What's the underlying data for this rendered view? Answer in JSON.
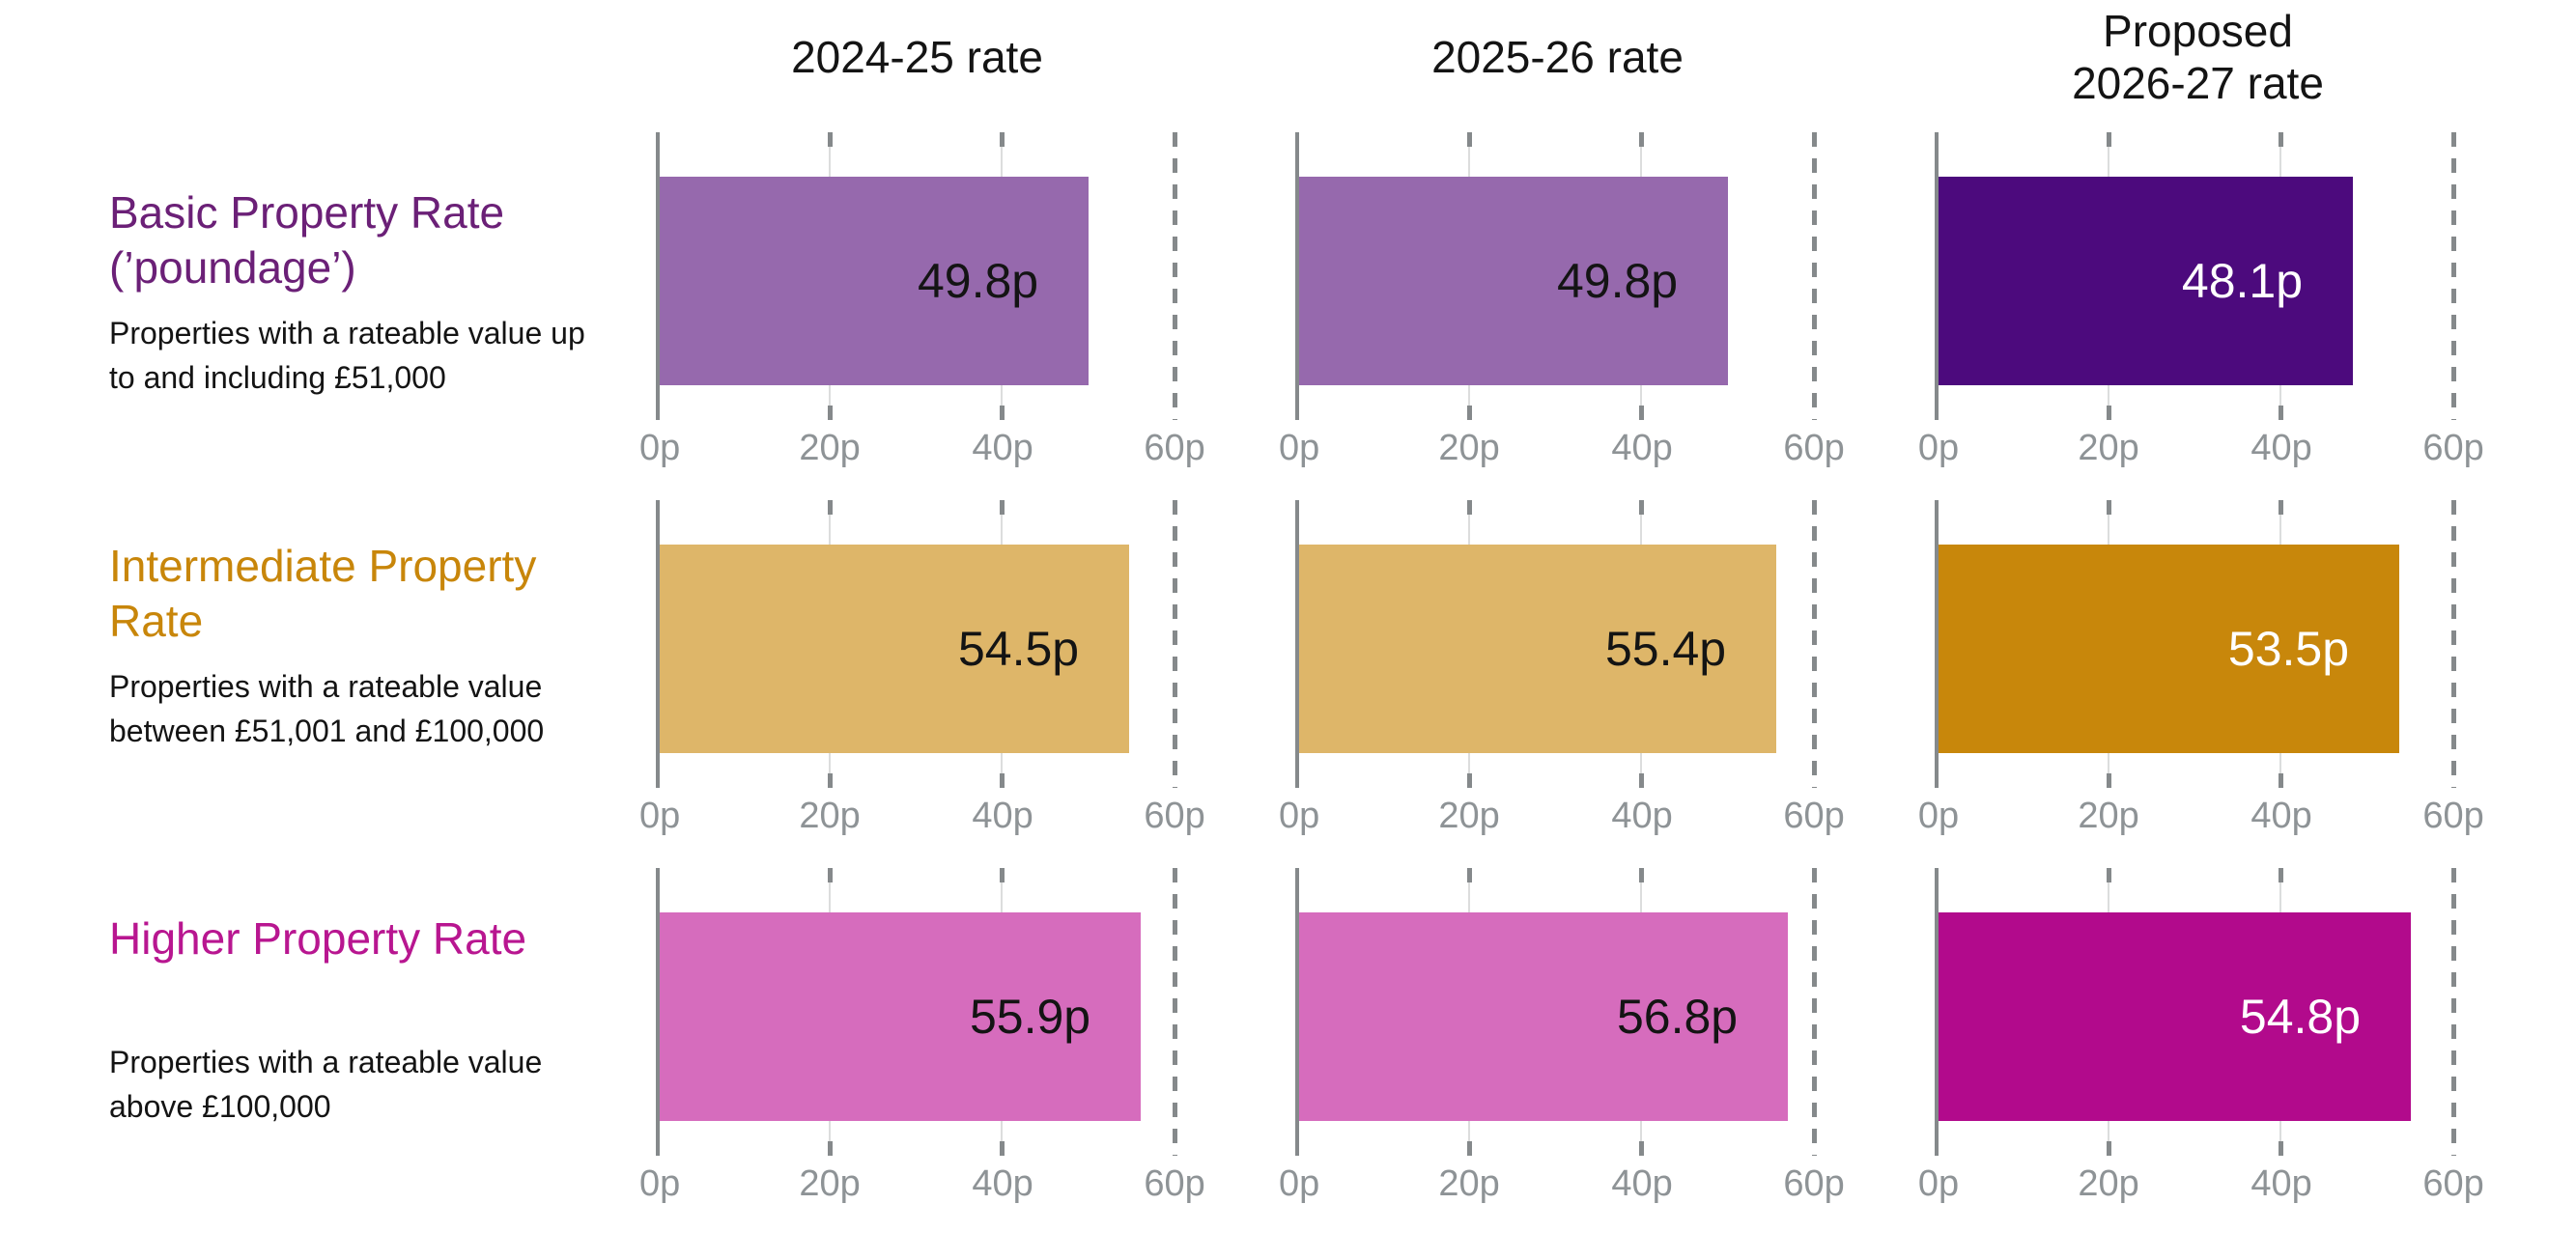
{
  "chart_data": {
    "type": "bar",
    "orientation": "horizontal",
    "unit": "pence in the pound",
    "categories": [
      "Basic Property Rate (’poundage’)",
      "Intermediate Property Rate",
      "Higher Property Rate"
    ],
    "category_notes": [
      "Properties with a rateable value up to and including £51,000",
      "Properties with a rateable value between £51,001 and £100,000",
      "Properties with a rateable value above £100,000"
    ],
    "series": [
      {
        "name": "2024-25 rate",
        "values": [
          49.8,
          54.5,
          55.9
        ]
      },
      {
        "name": "2025-26 rate",
        "values": [
          49.8,
          55.4,
          56.8
        ]
      },
      {
        "name": "Proposed 2026-27 rate",
        "values": [
          48.1,
          53.5,
          54.8
        ]
      }
    ],
    "xlim": [
      0,
      60
    ],
    "x_ticks": [
      "0p",
      "20p",
      "40p",
      "60p"
    ],
    "grid": "vertical gridlines, dashed line at 60p",
    "legend_position": "none (small multiples with column headers)",
    "layout": "3 rows (property rate bands) x 3 columns (years), one bar per mini-chart"
  },
  "header": {
    "columns": [
      "2024-25 rate",
      "2025-26 rate",
      "Proposed\n2026-27 rate"
    ]
  },
  "axis": {
    "ticks": [
      "0p",
      "20p",
      "40p",
      "60p"
    ]
  },
  "colors": {
    "axis_line": "#85898b",
    "grid_light": "#dcdddd",
    "tick_label": "#8e9396"
  },
  "rows": [
    {
      "title": "Basic Property Rate (’poundage’)",
      "title_color": "#6b2077",
      "description": "Properties with a rateable value up to and including £51,000",
      "bars": [
        {
          "label": "49.8p",
          "value": 49.8,
          "fill": "#9669ad",
          "text_color": "#141414"
        },
        {
          "label": "49.8p",
          "value": 49.8,
          "fill": "#9669ad",
          "text_color": "#141414"
        },
        {
          "label": "48.1p",
          "value": 48.1,
          "fill": "#4c0a7d",
          "text_color": "#ffffff"
        }
      ]
    },
    {
      "title": "Intermediate Property Rate",
      "title_color": "#c8860a",
      "description": "Properties with a rateable value between £51,001 and £100,000",
      "bars": [
        {
          "label": "54.5p",
          "value": 54.5,
          "fill": "#deb669",
          "text_color": "#141414"
        },
        {
          "label": "55.4p",
          "value": 55.4,
          "fill": "#deb669",
          "text_color": "#141414"
        },
        {
          "label": "53.5p",
          "value": 53.5,
          "fill": "#c8870b",
          "text_color": "#ffffff"
        }
      ]
    },
    {
      "title": "Higher Property Rate",
      "title_color": "#b81690",
      "description": "Properties with a rateable value above £100,000",
      "bars": [
        {
          "label": "55.9p",
          "value": 55.9,
          "fill": "#d66cbd",
          "text_color": "#141414"
        },
        {
          "label": "56.8p",
          "value": 56.8,
          "fill": "#d66cbd",
          "text_color": "#141414"
        },
        {
          "label": "54.8p",
          "value": 54.8,
          "fill": "#b20a8c",
          "text_color": "#ffffff"
        }
      ]
    }
  ]
}
